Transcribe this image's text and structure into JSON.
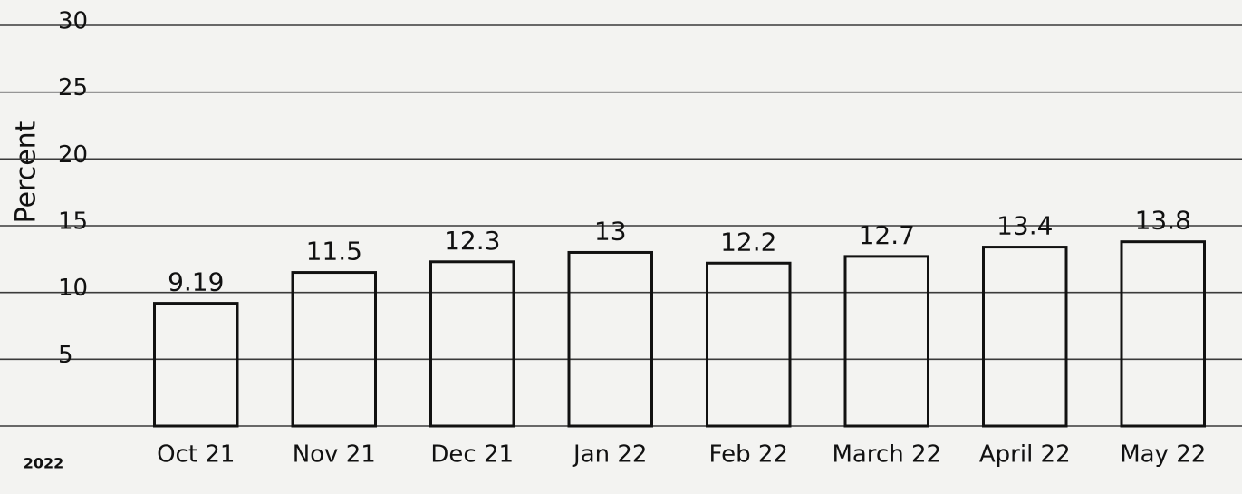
{
  "chart_data": {
    "type": "bar",
    "y_label": "Percent",
    "corner_label": "2022",
    "categories": [
      "Oct 21",
      "Nov 21",
      "Dec 21",
      "Jan 22",
      "Feb 22",
      "March 22",
      "April 22",
      "May 22"
    ],
    "values": [
      9.19,
      11.5,
      12.3,
      13,
      12.2,
      12.7,
      13.4,
      13.8
    ],
    "color": "#111111",
    "ylim": [
      0,
      30
    ],
    "yticks": [
      5,
      10,
      15,
      20,
      25,
      30
    ],
    "grid": true
  }
}
